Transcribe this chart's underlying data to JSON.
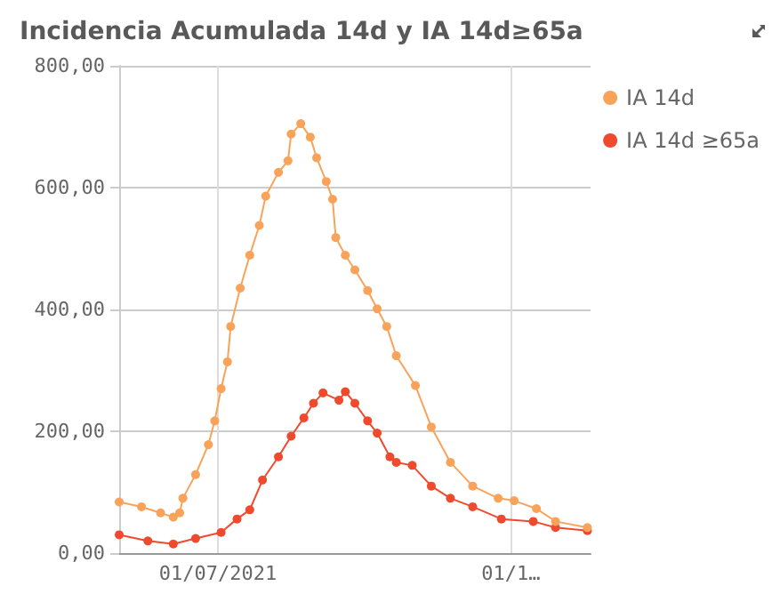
{
  "chart_data": {
    "type": "line",
    "title": "Incidencia Acumulada 14d y IA 14d≥65a",
    "xlim": [
      "2021-05-31",
      "2021-10-26"
    ],
    "xticks": [
      {
        "value": "2021-07-01",
        "label": "01/07/2021"
      },
      {
        "value": "2021-10-01",
        "label": "01/1…"
      }
    ],
    "ylim": [
      0,
      800
    ],
    "yticks": [
      {
        "value": 0,
        "label": "0,00"
      },
      {
        "value": 200,
        "label": "200,00"
      },
      {
        "value": 400,
        "label": "400,00"
      },
      {
        "value": 600,
        "label": "600,00"
      },
      {
        "value": 800,
        "label": "800,00"
      }
    ],
    "grid": true,
    "legend": "top right",
    "marker": "circle",
    "line_style": "solid",
    "series": [
      {
        "name": "IA 14d",
        "color": "#f9a35a",
        "x": [
          "2021-05-31",
          "2021-06-07",
          "2021-06-13",
          "2021-06-17",
          "2021-06-19",
          "2021-06-20",
          "2021-06-24",
          "2021-06-28",
          "2021-06-30",
          "2021-07-02",
          "2021-07-04",
          "2021-07-05",
          "2021-07-08",
          "2021-07-11",
          "2021-07-14",
          "2021-07-16",
          "2021-07-20",
          "2021-07-23",
          "2021-07-24",
          "2021-07-27",
          "2021-07-30",
          "2021-08-01",
          "2021-08-04",
          "2021-08-06",
          "2021-08-07",
          "2021-08-10",
          "2021-08-13",
          "2021-08-17",
          "2021-08-20",
          "2021-08-23",
          "2021-08-26",
          "2021-09-01",
          "2021-09-06",
          "2021-09-12",
          "2021-09-19",
          "2021-09-27",
          "2021-10-02",
          "2021-10-09",
          "2021-10-15",
          "2021-10-25"
        ],
        "values": [
          84,
          76,
          66,
          59,
          66,
          90,
          129,
          178,
          217,
          270,
          314,
          372,
          435,
          489,
          538,
          586,
          625,
          644,
          688,
          705,
          683,
          649,
          610,
          581,
          518,
          489,
          465,
          431,
          401,
          372,
          324,
          275,
          207,
          149,
          110,
          90,
          86,
          73,
          52,
          42
        ]
      },
      {
        "name": "IA 14d ≥65a",
        "color": "#f04a2e",
        "x": [
          "2021-05-31",
          "2021-06-09",
          "2021-06-17",
          "2021-06-24",
          "2021-07-02",
          "2021-07-07",
          "2021-07-11",
          "2021-07-15",
          "2021-07-20",
          "2021-07-24",
          "2021-07-28",
          "2021-07-31",
          "2021-08-03",
          "2021-08-08",
          "2021-08-10",
          "2021-08-13",
          "2021-08-17",
          "2021-08-20",
          "2021-08-24",
          "2021-08-26",
          "2021-08-31",
          "2021-09-06",
          "2021-09-12",
          "2021-09-19",
          "2021-09-28",
          "2021-10-08",
          "2021-10-15",
          "2021-10-25"
        ],
        "values": [
          30,
          20,
          15,
          24,
          34,
          56,
          71,
          120,
          158,
          192,
          222,
          246,
          263,
          251,
          265,
          246,
          217,
          197,
          158,
          149,
          144,
          110,
          90,
          76,
          56,
          52,
          42,
          37
        ]
      }
    ]
  }
}
